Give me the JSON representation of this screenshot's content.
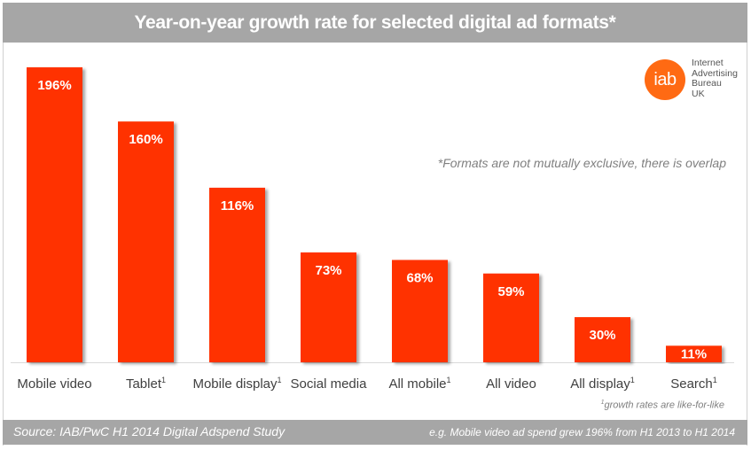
{
  "chart_data": {
    "type": "bar",
    "title": "Year-on-year growth rate for selected digital ad formats*",
    "categories": [
      "Mobile video",
      "Tablet",
      "Mobile display",
      "Social media",
      "All mobile",
      "All video",
      "All display",
      "Search"
    ],
    "category_superscripts": [
      "",
      "1",
      "1",
      "",
      "1",
      "",
      "1",
      "1"
    ],
    "values": [
      196,
      160,
      116,
      73,
      68,
      59,
      30,
      11
    ],
    "value_labels": [
      "196%",
      "160%",
      "116%",
      "73%",
      "68%",
      "59%",
      "30%",
      "11%"
    ],
    "unit": "%",
    "xlabel": "",
    "ylabel": "",
    "ylim": [
      0,
      200
    ],
    "grid": false,
    "bar_color": "#ff3300",
    "annotations": [
      "*Formats are not mutually exclusive, there is overlap",
      "growth rates are like-for-like"
    ]
  },
  "header": {
    "title": "Year-on-year growth rate for selected digital ad formats*"
  },
  "logo": {
    "mark": "iab",
    "lines": [
      "Internet",
      "Advertising",
      "Bureau",
      "UK"
    ],
    "color": "#ff6a13"
  },
  "note": "*Formats are not mutually exclusive, there is overlap",
  "footnote": {
    "marker": "1",
    "text": "growth rates are like-for-like"
  },
  "footer": {
    "source": "Source: IAB/PwC H1 2014 Digital Adspend Study",
    "example": "e.g. Mobile video ad spend grew 196% from H1 2013 to H1 2014"
  }
}
